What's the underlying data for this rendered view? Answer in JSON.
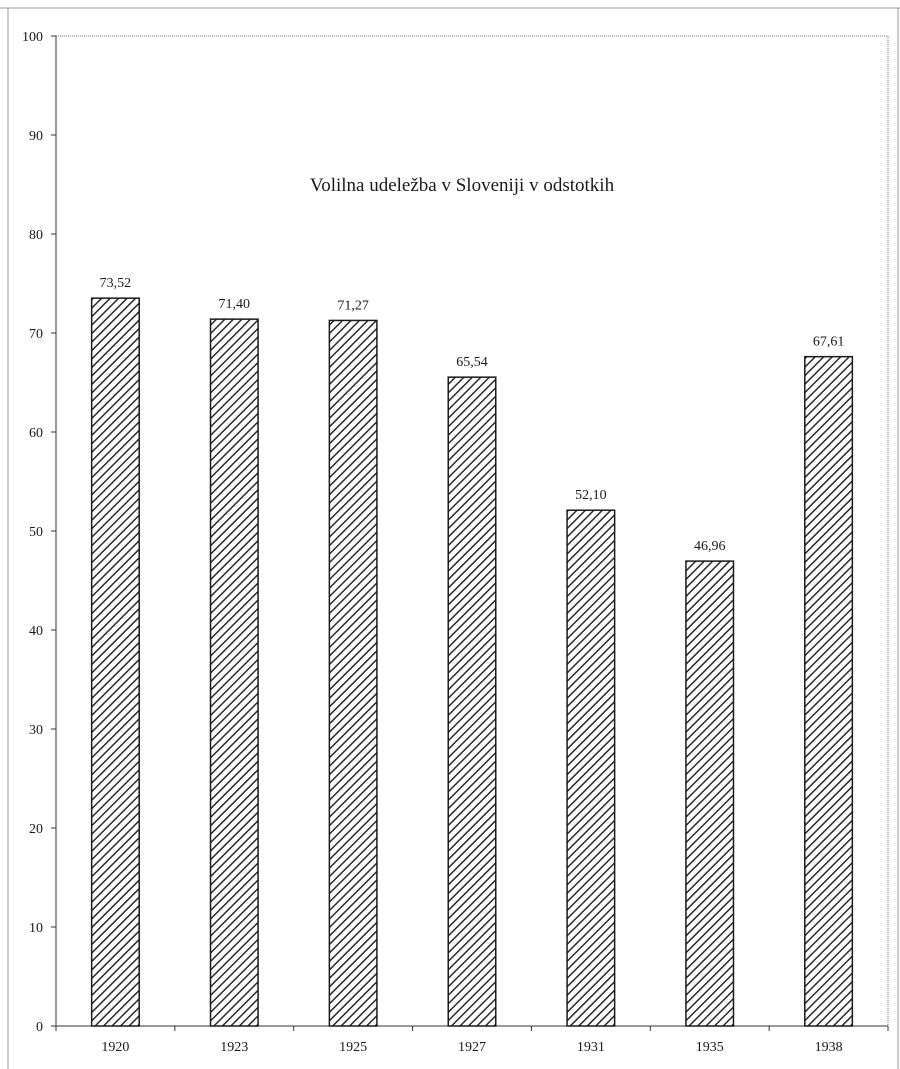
{
  "chart_data": {
    "type": "bar",
    "title": "Volilna udeležba v Sloveniji v odstotkih",
    "xlabel": "",
    "ylabel": "",
    "categories": [
      "1920",
      "1923",
      "1925",
      "1927",
      "1931",
      "1935",
      "1938"
    ],
    "values": [
      73.52,
      71.4,
      71.27,
      65.54,
      52.1,
      46.96,
      67.61
    ],
    "value_labels": [
      "73,52",
      "71,40",
      "71,27",
      "65,54",
      "52,10",
      "46,96",
      "67,61"
    ],
    "ylim": [
      0,
      100
    ],
    "yticks": [
      "0",
      "10",
      "20",
      "30",
      "40",
      "50",
      "60",
      "70",
      "80",
      "90",
      "100"
    ],
    "grid": false,
    "legend": "none",
    "bar_fill": "diagonal-hatch",
    "colors": {
      "bar_stroke": "#1a1a1a",
      "hatch": "#2a2a2a",
      "axis": "#333333",
      "background": "#ffffff"
    }
  }
}
